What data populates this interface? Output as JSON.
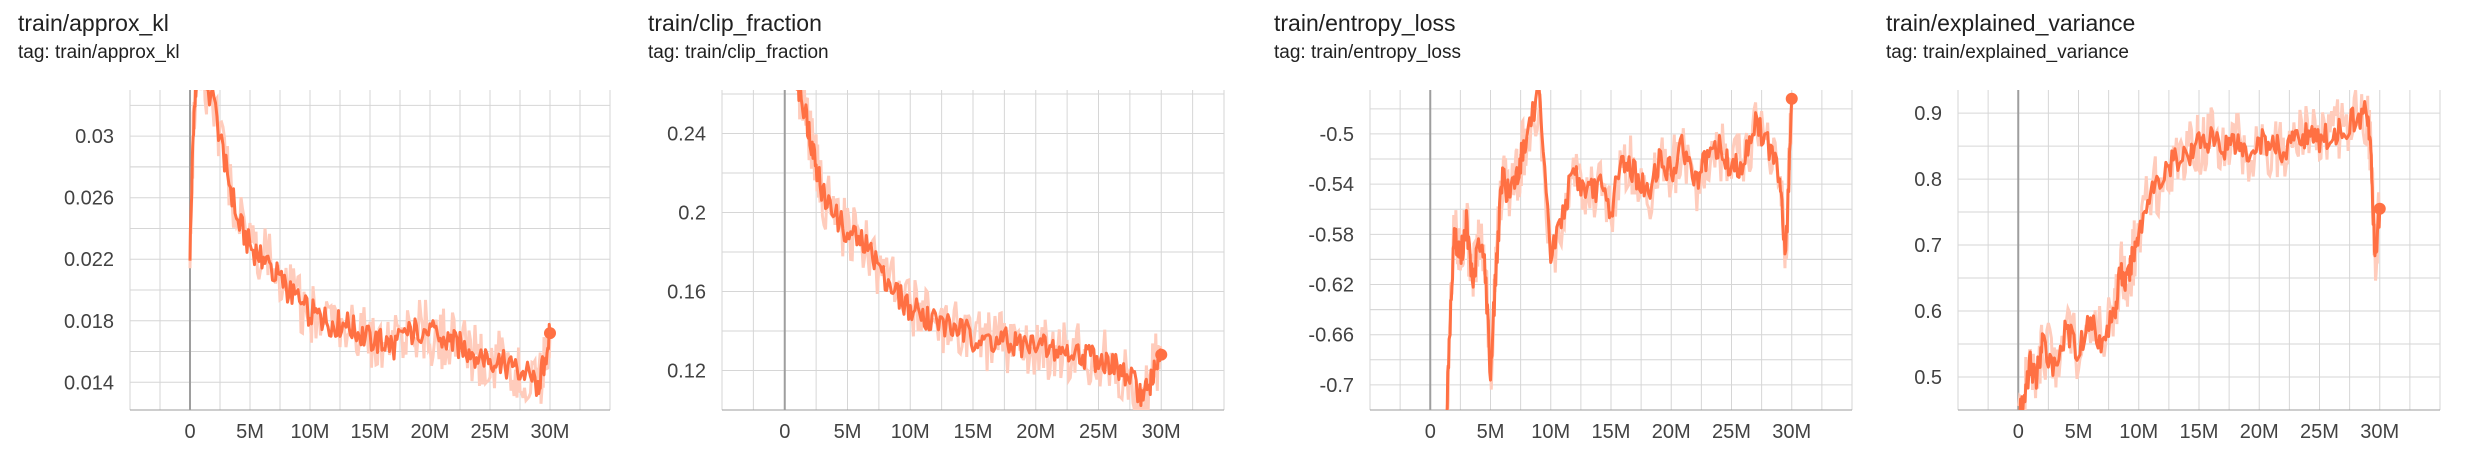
{
  "colors": {
    "line": "#ff7043",
    "line_light": "#ffccbc",
    "grid": "#d6d6d6",
    "axis": "#9e9e9e",
    "text": "#212121"
  },
  "chart_data": [
    {
      "type": "line",
      "title": "train/approx_kl",
      "tag": "tag: train/approx_kl",
      "xlabel": "",
      "ylabel": "",
      "xlim": [
        -5,
        35
      ],
      "ylim": [
        0.0122,
        0.033
      ],
      "x_ticks": [
        0,
        5,
        10,
        15,
        20,
        25,
        30
      ],
      "x_tick_labels": [
        "0",
        "5M",
        "10M",
        "15M",
        "20M",
        "25M",
        "30M"
      ],
      "y_ticks": [
        0.014,
        0.018,
        0.022,
        0.026,
        0.03
      ],
      "y_tick_labels": [
        "0.014",
        "0.018",
        "0.022",
        "0.026",
        "0.03"
      ],
      "grid": true,
      "series": [
        {
          "x": [
            0,
            0.3,
            0.6,
            1,
            2,
            3,
            4,
            5,
            6,
            7,
            8,
            9,
            10,
            11,
            12,
            13,
            14,
            15,
            16,
            17,
            18,
            19,
            20,
            21,
            22,
            23,
            24,
            25,
            26,
            27,
            28,
            29,
            29.5,
            30
          ],
          "y": [
            0.0225,
            0.031,
            0.034,
            0.034,
            0.032,
            0.028,
            0.0245,
            0.0228,
            0.0222,
            0.0212,
            0.0202,
            0.0192,
            0.0185,
            0.0182,
            0.0178,
            0.0178,
            0.0172,
            0.0168,
            0.0166,
            0.0164,
            0.017,
            0.0175,
            0.0172,
            0.0168,
            0.0165,
            0.0162,
            0.0158,
            0.0156,
            0.0152,
            0.0148,
            0.0146,
            0.0138,
            0.0152,
            0.0172
          ]
        }
      ]
    },
    {
      "type": "line",
      "title": "train/clip_fraction",
      "tag": "tag: train/clip_fraction",
      "xlabel": "",
      "ylabel": "",
      "xlim": [
        -5,
        35
      ],
      "ylim": [
        0.1,
        0.262
      ],
      "x_ticks": [
        0,
        5,
        10,
        15,
        20,
        25,
        30
      ],
      "x_tick_labels": [
        "0",
        "5M",
        "10M",
        "15M",
        "20M",
        "25M",
        "30M"
      ],
      "y_ticks": [
        0.12,
        0.16,
        0.2,
        0.24
      ],
      "y_tick_labels": [
        "0.12",
        "0.16",
        "0.2",
        "0.24"
      ],
      "grid": true,
      "series": [
        {
          "x": [
            1,
            1.5,
            2,
            2.5,
            3,
            4,
            5,
            6,
            7,
            8,
            9,
            10,
            11,
            12,
            13,
            14,
            15,
            16,
            17,
            18,
            19,
            20,
            21,
            22,
            23,
            24,
            25,
            26,
            27,
            28,
            28.5,
            29,
            29.5,
            30
          ],
          "y": [
            0.265,
            0.255,
            0.24,
            0.225,
            0.21,
            0.198,
            0.19,
            0.186,
            0.178,
            0.168,
            0.158,
            0.152,
            0.148,
            0.145,
            0.142,
            0.14,
            0.137,
            0.136,
            0.135,
            0.134,
            0.133,
            0.132,
            0.131,
            0.13,
            0.129,
            0.128,
            0.126,
            0.123,
            0.118,
            0.112,
            0.107,
            0.112,
            0.122,
            0.128
          ]
        }
      ]
    },
    {
      "type": "line",
      "title": "train/entropy_loss",
      "tag": "tag: train/entropy_loss",
      "xlabel": "",
      "ylabel": "",
      "xlim": [
        -5,
        35
      ],
      "ylim": [
        -0.72,
        -0.465
      ],
      "x_ticks": [
        0,
        5,
        10,
        15,
        20,
        25,
        30
      ],
      "x_tick_labels": [
        "0",
        "5M",
        "10M",
        "15M",
        "20M",
        "25M",
        "30M"
      ],
      "y_ticks": [
        -0.7,
        -0.66,
        -0.62,
        -0.58,
        -0.54,
        -0.5
      ],
      "y_tick_labels": [
        "-0.7",
        "-0.66",
        "-0.62",
        "-0.58",
        "-0.54",
        "-0.5"
      ],
      "grid": true,
      "series": [
        {
          "x": [
            1.3,
            1.6,
            2,
            2.5,
            3,
            3.5,
            4,
            4.5,
            5,
            5.5,
            6,
            6.5,
            7,
            7.5,
            8,
            9,
            10,
            11,
            12,
            13,
            14,
            15,
            16,
            17,
            18,
            19,
            20,
            21,
            22,
            23,
            24,
            25,
            26,
            27,
            28,
            29,
            29.5,
            30
          ],
          "y": [
            -0.74,
            -0.66,
            -0.58,
            -0.6,
            -0.57,
            -0.62,
            -0.59,
            -0.6,
            -0.69,
            -0.6,
            -0.53,
            -0.55,
            -0.54,
            -0.52,
            -0.5,
            -0.47,
            -0.6,
            -0.56,
            -0.53,
            -0.55,
            -0.54,
            -0.56,
            -0.52,
            -0.53,
            -0.55,
            -0.52,
            -0.53,
            -0.51,
            -0.54,
            -0.52,
            -0.51,
            -0.53,
            -0.52,
            -0.49,
            -0.51,
            -0.53,
            -0.6,
            -0.472
          ]
        }
      ]
    },
    {
      "type": "line",
      "title": "train/explained_variance",
      "tag": "tag: train/explained_variance",
      "xlabel": "",
      "ylabel": "",
      "xlim": [
        -5,
        35
      ],
      "ylim": [
        0.45,
        0.935
      ],
      "x_ticks": [
        0,
        5,
        10,
        15,
        20,
        25,
        30
      ],
      "x_tick_labels": [
        "0",
        "5M",
        "10M",
        "15M",
        "20M",
        "25M",
        "30M"
      ],
      "y_ticks": [
        0.5,
        0.6,
        0.7,
        0.8,
        0.9
      ],
      "y_tick_labels": [
        "0.5",
        "0.6",
        "0.7",
        "0.8",
        "0.9"
      ],
      "grid": true,
      "series": [
        {
          "x": [
            0,
            0.5,
            1,
            1.5,
            2,
            3,
            4,
            5,
            6,
            7,
            8,
            8.5,
            9,
            9.5,
            10,
            11,
            12,
            13,
            14,
            15,
            16,
            17,
            18,
            19,
            20,
            21,
            22,
            23,
            24,
            25,
            26,
            27,
            28,
            29,
            29.3,
            29.6,
            30
          ],
          "y": [
            0.43,
            0.47,
            0.52,
            0.5,
            0.55,
            0.52,
            0.57,
            0.54,
            0.59,
            0.55,
            0.6,
            0.66,
            0.64,
            0.68,
            0.72,
            0.78,
            0.8,
            0.83,
            0.84,
            0.85,
            0.86,
            0.85,
            0.86,
            0.84,
            0.86,
            0.85,
            0.84,
            0.86,
            0.87,
            0.86,
            0.87,
            0.88,
            0.89,
            0.9,
            0.82,
            0.68,
            0.755
          ]
        }
      ]
    }
  ]
}
